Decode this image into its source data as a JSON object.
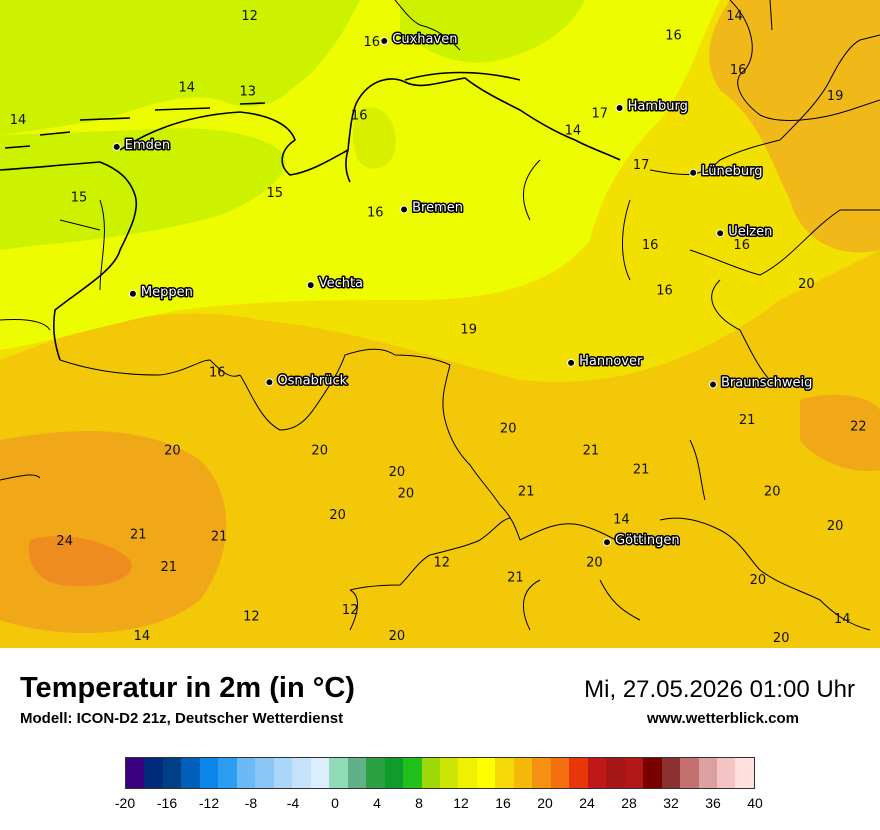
{
  "header": {
    "title": "Temperatur in 2m (in °C)",
    "model": "Modell: ICON-D2 21z, Deutscher Wetterdienst",
    "datetime": "Mi, 27.05.2026 01:00 Uhr",
    "website": "www.wetterblick.com"
  },
  "cities": [
    {
      "name": "Cuxhaven",
      "lon": 8.69,
      "lat": 53.86
    },
    {
      "name": "Hamburg",
      "lon": 10.0,
      "lat": 53.55
    },
    {
      "name": "Emden",
      "lon": 7.2,
      "lat": 53.37
    },
    {
      "name": "Lüneburg",
      "lon": 10.41,
      "lat": 53.25
    },
    {
      "name": "Bremen",
      "lon": 8.8,
      "lat": 53.08
    },
    {
      "name": "Uelzen",
      "lon": 10.56,
      "lat": 52.97
    },
    {
      "name": "Vechta",
      "lon": 8.28,
      "lat": 52.73
    },
    {
      "name": "Meppen",
      "lon": 7.29,
      "lat": 52.69
    },
    {
      "name": "Hannover",
      "lon": 9.73,
      "lat": 52.37
    },
    {
      "name": "Osnabrück",
      "lon": 8.05,
      "lat": 52.28
    },
    {
      "name": "Braunschweig",
      "lon": 10.52,
      "lat": 52.27
    },
    {
      "name": "Göttingen",
      "lon": 9.93,
      "lat": 51.54
    }
  ],
  "temperatures": [
    {
      "value": "12",
      "lon": 7.94,
      "lat": 53.98
    },
    {
      "value": "14",
      "lon": 10.64,
      "lat": 53.98
    },
    {
      "value": "16",
      "lon": 10.3,
      "lat": 53.89
    },
    {
      "value": "16",
      "lon": 8.62,
      "lat": 53.86
    },
    {
      "value": "16",
      "lon": 10.66,
      "lat": 53.73
    },
    {
      "value": "14",
      "lon": 7.59,
      "lat": 53.65
    },
    {
      "value": "13",
      "lon": 7.93,
      "lat": 53.63
    },
    {
      "value": "19",
      "lon": 11.2,
      "lat": 53.61
    },
    {
      "value": "16",
      "lon": 8.55,
      "lat": 53.52
    },
    {
      "value": "17",
      "lon": 9.89,
      "lat": 53.53
    },
    {
      "value": "14",
      "lon": 6.65,
      "lat": 53.5
    },
    {
      "value": "14",
      "lon": 9.74,
      "lat": 53.45
    },
    {
      "value": "17",
      "lon": 10.12,
      "lat": 53.29
    },
    {
      "value": "15",
      "lon": 6.99,
      "lat": 53.14
    },
    {
      "value": "15",
      "lon": 8.08,
      "lat": 53.16
    },
    {
      "value": "16",
      "lon": 8.64,
      "lat": 53.07
    },
    {
      "value": "16",
      "lon": 10.17,
      "lat": 52.92
    },
    {
      "value": "16",
      "lon": 10.68,
      "lat": 52.92
    },
    {
      "value": "20",
      "lon": 11.04,
      "lat": 52.74
    },
    {
      "value": "16",
      "lon": 10.25,
      "lat": 52.71
    },
    {
      "value": "19",
      "lon": 9.16,
      "lat": 52.53
    },
    {
      "value": "16",
      "lon": 7.76,
      "lat": 52.33
    },
    {
      "value": "21",
      "lon": 10.71,
      "lat": 52.11
    },
    {
      "value": "22",
      "lon": 11.33,
      "lat": 52.08
    },
    {
      "value": "20",
      "lon": 9.38,
      "lat": 52.07
    },
    {
      "value": "20",
      "lon": 7.51,
      "lat": 51.97
    },
    {
      "value": "20",
      "lon": 8.33,
      "lat": 51.97
    },
    {
      "value": "21",
      "lon": 9.84,
      "lat": 51.97
    },
    {
      "value": "21",
      "lon": 10.12,
      "lat": 51.88
    },
    {
      "value": "20",
      "lon": 8.76,
      "lat": 51.87
    },
    {
      "value": "20",
      "lon": 8.81,
      "lat": 51.77
    },
    {
      "value": "21",
      "lon": 9.48,
      "lat": 51.78
    },
    {
      "value": "20",
      "lon": 10.85,
      "lat": 51.78
    },
    {
      "value": "14",
      "lon": 10.01,
      "lat": 51.65
    },
    {
      "value": "20",
      "lon": 8.43,
      "lat": 51.67
    },
    {
      "value": "20",
      "lon": 11.2,
      "lat": 51.62
    },
    {
      "value": "24",
      "lon": 6.91,
      "lat": 51.55
    },
    {
      "value": "21",
      "lon": 7.32,
      "lat": 51.58
    },
    {
      "value": "21",
      "lon": 7.77,
      "lat": 51.57
    },
    {
      "value": "12",
      "lon": 9.01,
      "lat": 51.45
    },
    {
      "value": "20",
      "lon": 9.86,
      "lat": 51.45
    },
    {
      "value": "21",
      "lon": 7.49,
      "lat": 51.43
    },
    {
      "value": "21",
      "lon": 9.42,
      "lat": 51.38
    },
    {
      "value": "20",
      "lon": 10.77,
      "lat": 51.37
    },
    {
      "value": "12",
      "lon": 8.5,
      "lat": 51.23
    },
    {
      "value": "12",
      "lon": 7.95,
      "lat": 51.2
    },
    {
      "value": "14",
      "lon": 11.24,
      "lat": 51.19
    },
    {
      "value": "14",
      "lon": 7.34,
      "lat": 51.11
    },
    {
      "value": "20",
      "lon": 8.76,
      "lat": 51.11
    },
    {
      "value": "20",
      "lon": 10.9,
      "lat": 51.1
    }
  ],
  "legend": {
    "colors": [
      "#3a0080",
      "#002a7a",
      "#003f85",
      "#0060b8",
      "#0a86e8",
      "#2c9df0",
      "#6bbaf5",
      "#8ac7f7",
      "#aad6f9",
      "#c6e2fb",
      "#dceefe",
      "#90dcb8",
      "#60b088",
      "#2ba040",
      "#0f9c2c",
      "#22c01a",
      "#9ed80a",
      "#cee605",
      "#eef200",
      "#ffff00",
      "#f4d80a",
      "#f4b908",
      "#f69212",
      "#f46f0f",
      "#e83608",
      "#c01818",
      "#a71616",
      "#b31818",
      "#7a0000",
      "#8a3030",
      "#c47070",
      "#dca0a0",
      "#f4c4c4",
      "#ffdede"
    ],
    "ticks": [
      "-20",
      "-16",
      "-12",
      "-8",
      "-4",
      "0",
      "4",
      "8",
      "12",
      "16",
      "20",
      "24",
      "28",
      "32",
      "36",
      "40"
    ]
  },
  "colors": {
    "sea": "#ccf200",
    "coastal": "#eefc00",
    "inland": "#f2e000",
    "south": "#f2c808",
    "warm": "#f0a818",
    "hot": "#ee8c20",
    "line": "#000000"
  }
}
